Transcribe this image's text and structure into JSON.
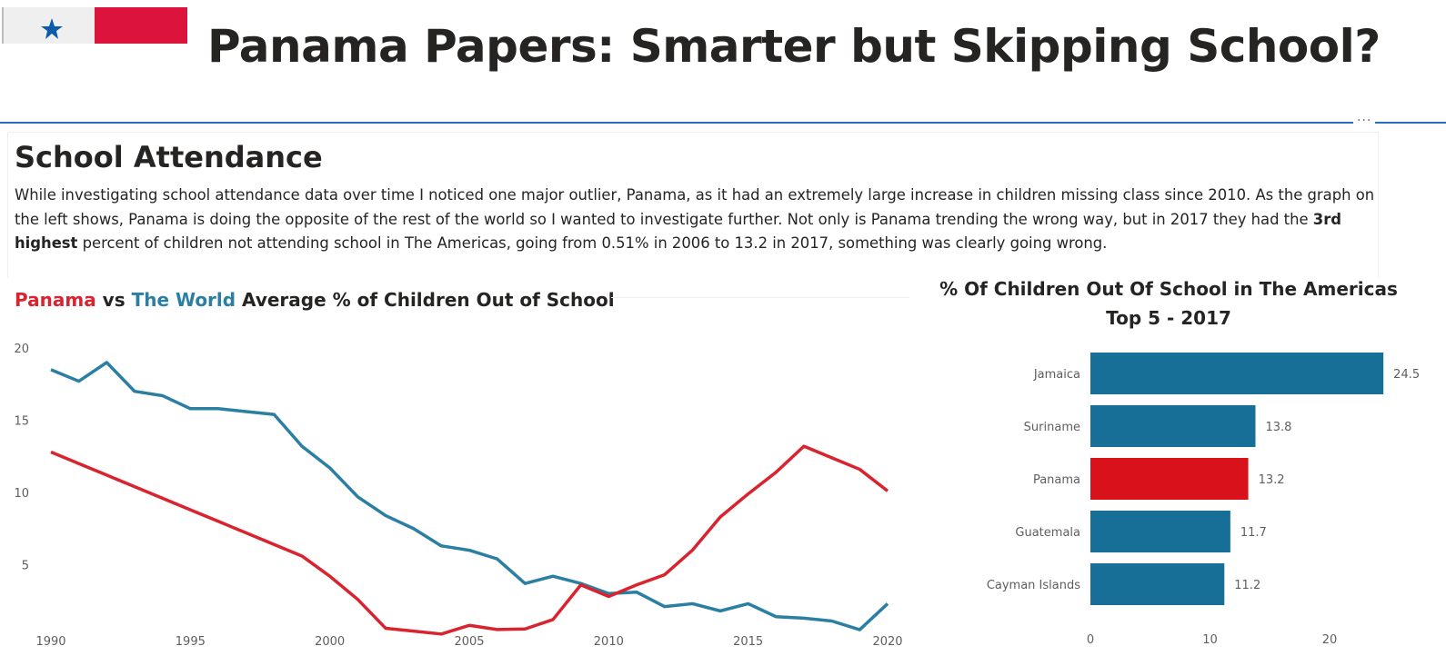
{
  "header": {
    "title": "Panama Papers: Smarter but Skipping School?",
    "flag": "panama-flag",
    "more_options": "..."
  },
  "article": {
    "heading": "School Attendance",
    "paragraph_part1": "While investigating school attendance data over time I noticed one major outlier, Panama, as it had an extremely large increase in children missing class since 2010.  As the graph on the left shows, Panama is doing the opposite of the rest of the world so I wanted to investigate further.  Not only is Panama trending the wrong way, but in 2017 they had the ",
    "paragraph_bold": "3rd highest",
    "paragraph_part2": " percent of children not attending school in The Americas, going from 0.51% in 2006 to 13.2 in 2017, something was clearly going wrong."
  },
  "chart_data": [
    {
      "type": "line",
      "title_parts": {
        "panama": "Panama",
        "vs": " vs ",
        "world": "The World",
        "rest": " Average % of Children Out of School"
      },
      "x": [
        1990,
        1991,
        1992,
        1993,
        1994,
        1995,
        1996,
        1997,
        1998,
        1999,
        2000,
        2001,
        2002,
        2003,
        2004,
        2005,
        2006,
        2007,
        2008,
        2009,
        2010,
        2011,
        2012,
        2013,
        2014,
        2015,
        2016,
        2017,
        2018,
        2019,
        2020
      ],
      "series": [
        {
          "name": "The World",
          "color": "#2a7fa3",
          "values": [
            18.5,
            17.7,
            19.0,
            17.0,
            16.7,
            15.8,
            15.8,
            15.6,
            15.4,
            13.2,
            11.7,
            9.7,
            8.4,
            7.5,
            6.3,
            6.0,
            5.4,
            3.7,
            4.2,
            3.7,
            3.0,
            3.1,
            2.1,
            2.3,
            1.8,
            2.3,
            1.4,
            1.3,
            1.1,
            0.5,
            2.3
          ]
        },
        {
          "name": "Panama",
          "color": "#d9232e",
          "values": [
            12.8,
            12.0,
            11.2,
            10.4,
            9.6,
            8.8,
            8.0,
            7.2,
            6.4,
            5.6,
            4.2,
            2.6,
            0.6,
            0.4,
            0.2,
            0.8,
            0.51,
            0.55,
            1.2,
            3.6,
            2.8,
            3.6,
            4.3,
            6.0,
            8.3,
            9.9,
            11.4,
            13.2,
            12.4,
            11.6,
            10.1
          ]
        }
      ],
      "yticks": [
        5,
        10,
        15,
        20
      ],
      "xticks": [
        1990,
        1995,
        2000,
        2005,
        2010,
        2015,
        2020
      ],
      "ylim": [
        0,
        20
      ],
      "xlim": [
        1990,
        2020
      ],
      "grid": false
    },
    {
      "type": "bar",
      "orientation": "horizontal",
      "title_line1": "% Of Children Out Of School in The Americas",
      "title_line2": "Top 5 - 2017",
      "categories": [
        "Jamaica",
        "Suriname",
        "Panama",
        "Guatemala",
        "Cayman Islands"
      ],
      "values": [
        24.5,
        13.8,
        13.2,
        11.7,
        11.2
      ],
      "labels": [
        "24.5",
        "13.8",
        "13.2",
        "11.7",
        "11.2"
      ],
      "colors": [
        "#176e96",
        "#176e96",
        "#d9111a",
        "#176e96",
        "#176e96"
      ],
      "xticks": [
        0,
        10,
        20
      ],
      "xlim": [
        0,
        25
      ]
    }
  ]
}
